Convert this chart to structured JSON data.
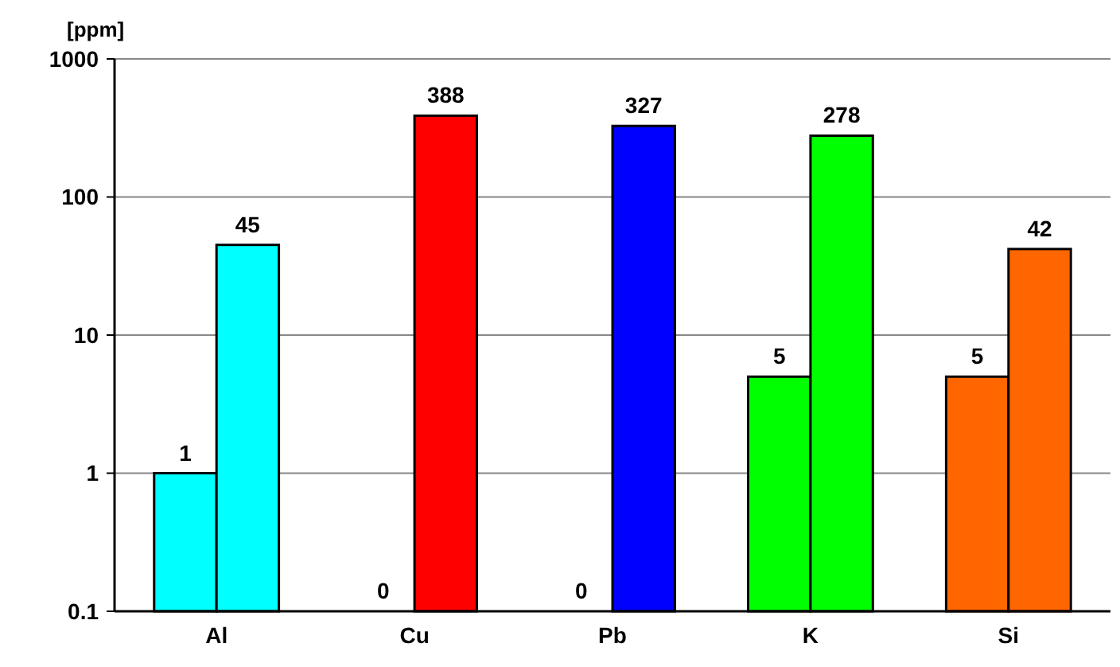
{
  "chart_data": {
    "type": "bar",
    "ylabel": "[ppm]",
    "categories": [
      "Al",
      "Cu",
      "Pb",
      "K",
      "Si"
    ],
    "log": true,
    "ylim": [
      0.1,
      1000
    ],
    "yticks": [
      0.1,
      1,
      10,
      100,
      1000
    ],
    "grid": "y",
    "data_labels": true,
    "series": [
      {
        "colors": [
          "#00ffff",
          null,
          null,
          "#00ff00",
          "#ff6600"
        ],
        "values": [
          1,
          null,
          null,
          5,
          5
        ],
        "value_labels": [
          "1",
          "0",
          "0",
          "5",
          "5"
        ]
      },
      {
        "colors": [
          "#00ffff",
          "#ff0000",
          "#0000ff",
          "#00ff00",
          "#ff6600"
        ],
        "values": [
          45,
          388,
          327,
          278,
          42
        ]
      }
    ]
  }
}
